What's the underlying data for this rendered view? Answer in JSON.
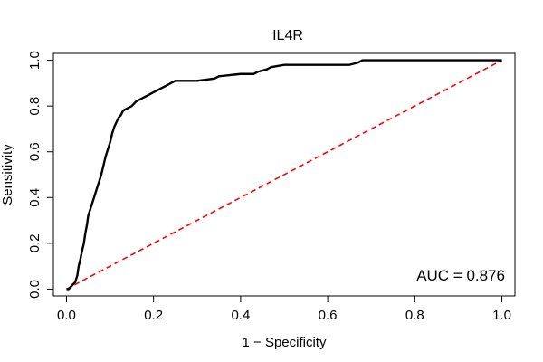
{
  "chart_data": {
    "type": "line",
    "title": "IL4R",
    "xlabel": "1 − Specificity",
    "ylabel": "Sensitivity",
    "xlim": [
      -0.03,
      1.03
    ],
    "ylim": [
      -0.03,
      1.03
    ],
    "xticks": [
      "0.0",
      "0.2",
      "0.4",
      "0.6",
      "0.8",
      "1.0"
    ],
    "yticks": [
      "0.0",
      "0.2",
      "0.4",
      "0.6",
      "0.8",
      "1.0"
    ],
    "xtick_values": [
      0,
      0.2,
      0.4,
      0.6,
      0.8,
      1.0
    ],
    "ytick_values": [
      0,
      0.2,
      0.4,
      0.6,
      0.8,
      1.0
    ],
    "grid": false,
    "annotation": "AUC = 0.876",
    "colors": {
      "roc": "#000000",
      "reference": "#ff0000"
    },
    "series": [
      {
        "x": [
          0.0,
          0.005,
          0.01,
          0.015,
          0.02,
          0.025,
          0.028,
          0.032,
          0.035,
          0.04,
          0.043,
          0.047,
          0.05,
          0.055,
          0.06,
          0.065,
          0.07,
          0.075,
          0.08,
          0.085,
          0.09,
          0.095,
          0.1,
          0.105,
          0.11,
          0.115,
          0.12,
          0.125,
          0.13,
          0.14,
          0.15,
          0.16,
          0.17,
          0.18,
          0.19,
          0.2,
          0.21,
          0.22,
          0.23,
          0.24,
          0.25,
          0.3,
          0.34,
          0.35,
          0.4,
          0.43,
          0.44,
          0.46,
          0.47,
          0.5,
          0.55,
          0.6,
          0.65,
          0.67,
          0.68,
          0.7,
          0.8,
          0.9,
          1.0
        ],
        "y": [
          0.0,
          0.0,
          0.01,
          0.02,
          0.03,
          0.06,
          0.1,
          0.13,
          0.16,
          0.2,
          0.24,
          0.28,
          0.32,
          0.35,
          0.38,
          0.41,
          0.44,
          0.47,
          0.5,
          0.54,
          0.58,
          0.61,
          0.64,
          0.68,
          0.71,
          0.73,
          0.75,
          0.76,
          0.78,
          0.79,
          0.8,
          0.82,
          0.83,
          0.84,
          0.85,
          0.86,
          0.87,
          0.88,
          0.89,
          0.9,
          0.91,
          0.91,
          0.92,
          0.93,
          0.94,
          0.94,
          0.95,
          0.96,
          0.97,
          0.98,
          0.98,
          0.98,
          0.98,
          0.99,
          1.0,
          1.0,
          1.0,
          1.0,
          1.0
        ]
      },
      {
        "x": [
          0,
          1
        ],
        "y": [
          0,
          1
        ]
      }
    ]
  }
}
